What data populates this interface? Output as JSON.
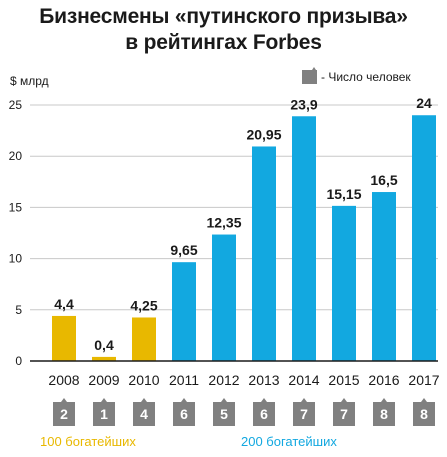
{
  "chart_data": {
    "type": "bar",
    "title_lines": [
      "Бизнесмены  «путинского призыва»",
      "в рейтингах Forbes"
    ],
    "ylabel": "$ млрд",
    "ylim": [
      0,
      25
    ],
    "yticks": [
      0,
      5,
      10,
      15,
      20,
      25
    ],
    "categories": [
      "2008",
      "2009",
      "2010",
      "2011",
      "2012",
      "2013",
      "2014",
      "2015",
      "2016",
      "2017"
    ],
    "values": [
      4.4,
      0.4,
      4.25,
      9.65,
      12.35,
      20.95,
      23.9,
      15.15,
      16.5,
      24
    ],
    "value_labels": [
      "4,4",
      "0,4",
      "4,25",
      "9,65",
      "12,35",
      "20,95",
      "23,9",
      "15,15",
      "16,5",
      "24"
    ],
    "people_count": [
      "2",
      "1",
      "4",
      "6",
      "5",
      "6",
      "7",
      "7",
      "8",
      "8"
    ],
    "groups": [
      {
        "name": "100 богатейших",
        "color": "#e8b800",
        "start": 0,
        "end": 2
      },
      {
        "name": "200 богатейших",
        "color": "#12a8e0",
        "start": 3,
        "end": 9
      }
    ],
    "legend": {
      "label": "- Число человек",
      "color": "#808080"
    },
    "grid": true
  }
}
